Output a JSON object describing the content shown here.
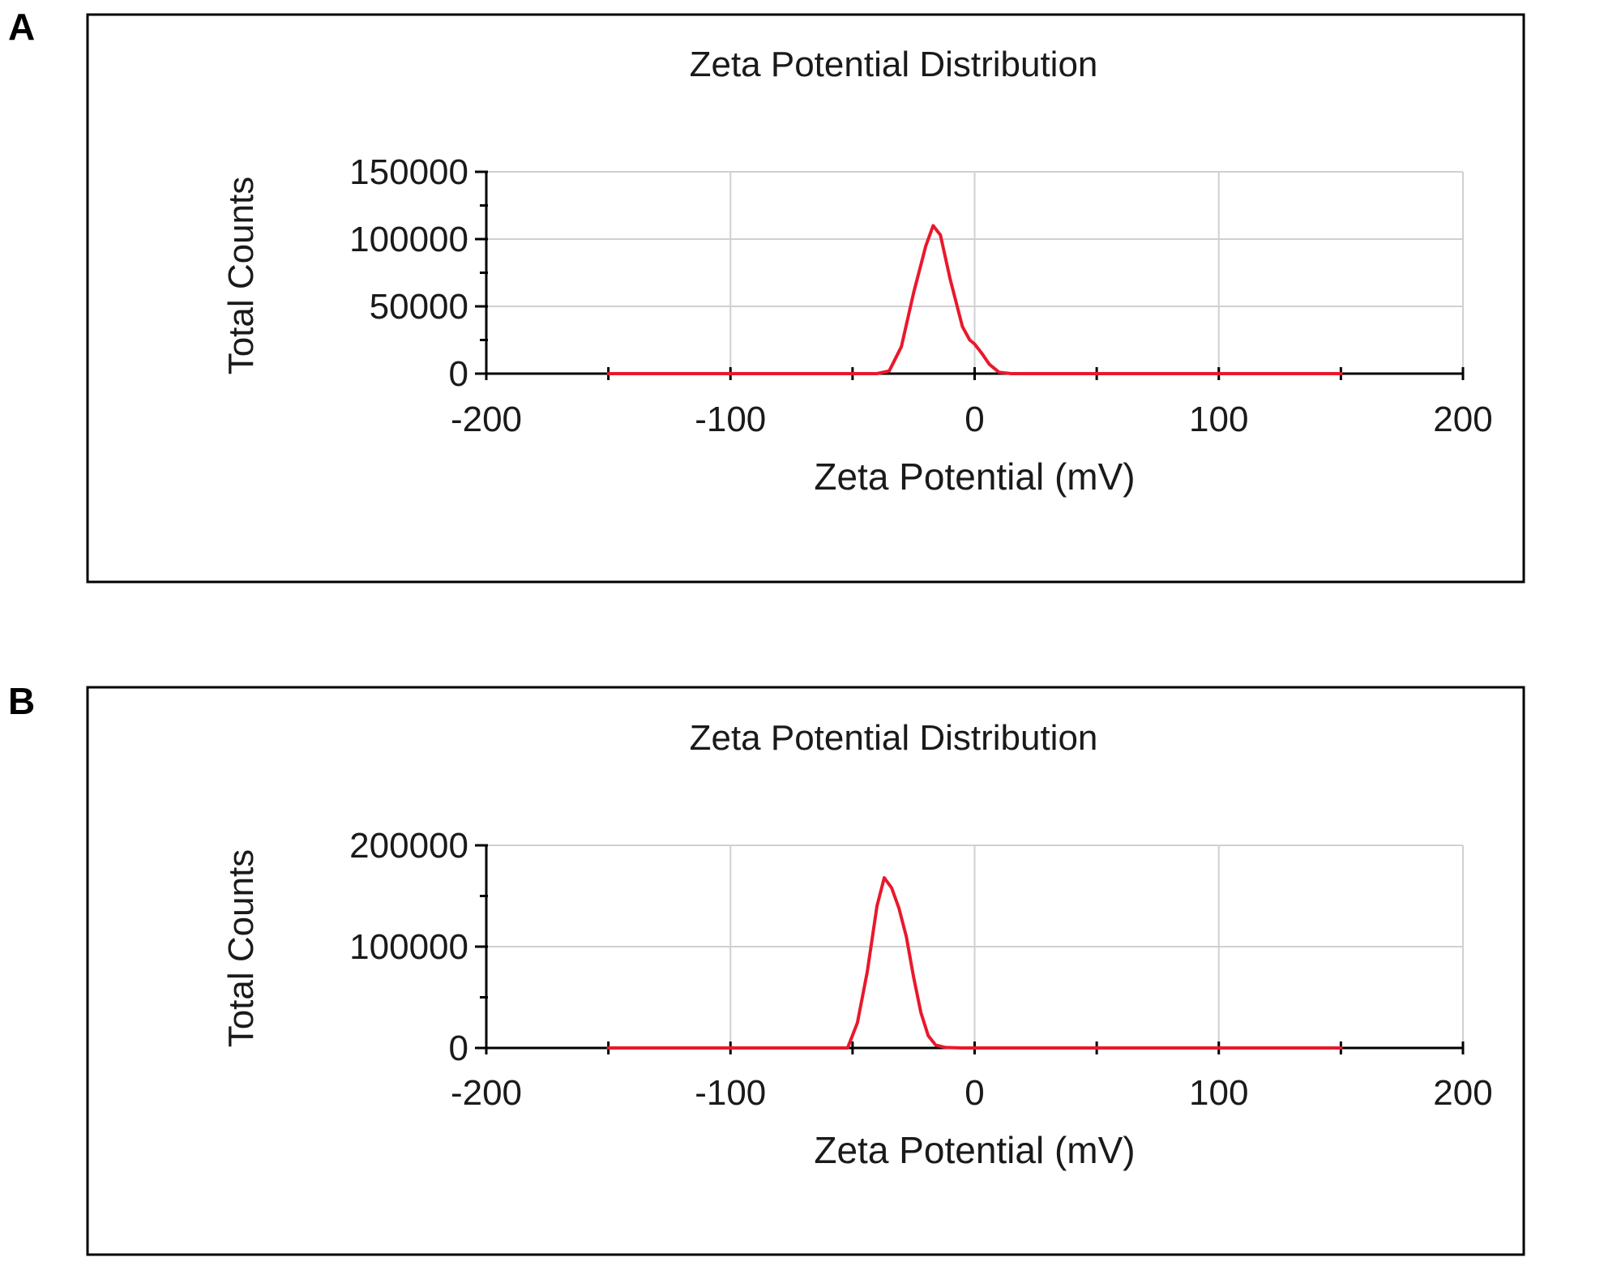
{
  "panels": [
    {
      "letter": "A"
    },
    {
      "letter": "B"
    }
  ],
  "colors": {
    "series": "#e8192c",
    "axis": "#000000",
    "grid": "#d0d0d0",
    "frame": "#000000"
  },
  "chart_data": [
    {
      "type": "line",
      "title": "Zeta Potential Distribution",
      "xlabel": "Zeta Potential (mV)",
      "ylabel": "Total Counts",
      "xlim": [
        -200,
        200
      ],
      "ylim": [
        0,
        150000
      ],
      "x_ticks": [
        -200,
        -100,
        0,
        100,
        200
      ],
      "y_ticks": [
        0,
        50000,
        100000,
        150000
      ],
      "y_minor_step": 25000,
      "x_minor_step": 50,
      "grid": true,
      "series": [
        {
          "x": [
            -150,
            -60,
            -40,
            -35,
            -30,
            -25,
            -20,
            -17,
            -14,
            -10,
            -5,
            -2,
            0,
            3,
            6,
            10,
            15,
            50,
            100,
            150
          ],
          "y": [
            0,
            0,
            0,
            2000,
            20000,
            60000,
            95000,
            110000,
            103000,
            70000,
            35000,
            25000,
            22000,
            15000,
            7000,
            1000,
            0,
            0,
            0,
            0
          ]
        }
      ]
    },
    {
      "type": "line",
      "title": "Zeta Potential Distribution",
      "xlabel": "Zeta Potential (mV)",
      "ylabel": "Total Counts",
      "xlim": [
        -200,
        200
      ],
      "ylim": [
        0,
        200000
      ],
      "x_ticks": [
        -200,
        -100,
        0,
        100,
        200
      ],
      "y_ticks": [
        0,
        100000,
        200000
      ],
      "y_minor_step": 50000,
      "x_minor_step": 50,
      "grid": true,
      "series": [
        {
          "x": [
            -150,
            -60,
            -52,
            -48,
            -44,
            -40,
            -37,
            -34,
            -31,
            -28,
            -25,
            -22,
            -19,
            -16,
            -12,
            -5,
            0,
            50,
            100,
            150
          ],
          "y": [
            0,
            0,
            0,
            25000,
            75000,
            140000,
            168000,
            158000,
            138000,
            110000,
            70000,
            35000,
            12000,
            3000,
            500,
            0,
            0,
            0,
            0,
            0
          ]
        }
      ]
    }
  ]
}
